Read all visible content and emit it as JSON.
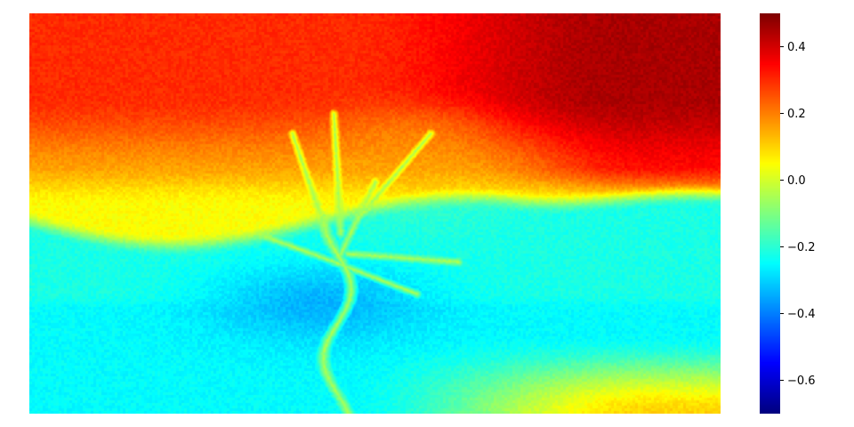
{
  "chart_data": {
    "type": "heatmap",
    "colormap": "jet",
    "grid": false,
    "xlabel": "",
    "ylabel": "",
    "title": "",
    "colorbar": {
      "vmin": -0.7,
      "vmax": 0.5,
      "ticks": [
        0.4,
        0.2,
        0.0,
        -0.2,
        -0.4,
        -0.6
      ],
      "tick_labels": [
        "0.4",
        "0.2",
        "0.0",
        "−0.2",
        "−0.4",
        "−0.6"
      ]
    },
    "regions": {
      "sky_top_right": 0.45,
      "sky_top_left": 0.3,
      "sky_middle": 0.15,
      "horizon_band": 0.05,
      "mountains": -0.22,
      "tree_trunk": -0.05,
      "tree_canopy": 0.15,
      "water_shadow": -0.35,
      "water": -0.25,
      "foreground_right": 0.1
    }
  }
}
